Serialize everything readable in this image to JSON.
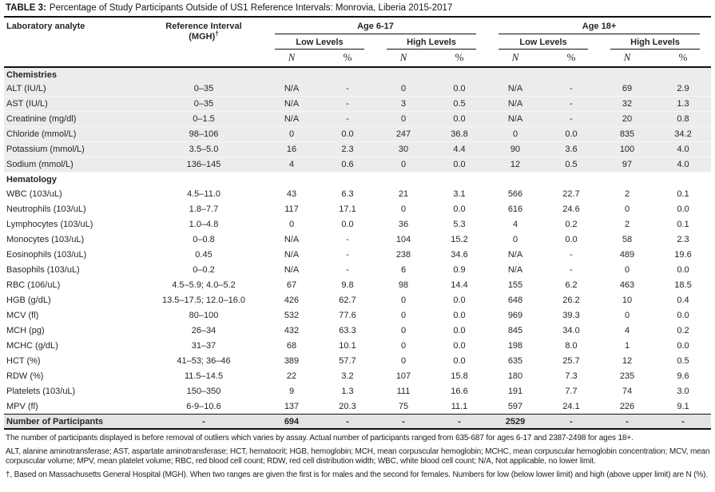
{
  "title": {
    "label": "TABLE 3:",
    "text": "Percentage of Study Participants Outside of US1 Reference Intervals: Monrovia, Liberia 2015-2017"
  },
  "table": {
    "col_headers": {
      "analyte": "Laboratory analyte",
      "reference_line1": "Reference Interval",
      "reference_line2": "(MGH)",
      "reference_dagger": "†",
      "age_groups": [
        "Age 6-17",
        "Age 18+"
      ],
      "level_groups": [
        "Low Levels",
        "High Levels",
        "Low Levels",
        "High Levels"
      ],
      "n_label": "N",
      "pct_label": "%"
    },
    "sections": [
      {
        "name": "Chemistries",
        "shaded": true,
        "rows": [
          {
            "analyte": "ALT (IU/L)",
            "ref": "0–35",
            "values": [
              "N/A",
              "-",
              "0",
              "0.0",
              "N/A",
              "-",
              "69",
              "2.9"
            ]
          },
          {
            "analyte": "AST (IU/L)",
            "ref": "0–35",
            "values": [
              "N/A",
              "-",
              "3",
              "0.5",
              "N/A",
              "-",
              "32",
              "1.3"
            ]
          },
          {
            "analyte": "Creatinine (mg/dl)",
            "ref": "0–1.5",
            "values": [
              "N/A",
              "-",
              "0",
              "0.0",
              "N/A",
              "-",
              "20",
              "0.8"
            ]
          },
          {
            "analyte": "Chloride (mmol/L)",
            "ref": "98–106",
            "values": [
              "0",
              "0.0",
              "247",
              "36.8",
              "0",
              "0.0",
              "835",
              "34.2"
            ]
          },
          {
            "analyte": "Potassium (mmol/L)",
            "ref": "3.5–5.0",
            "values": [
              "16",
              "2.3",
              "30",
              "4.4",
              "90",
              "3.6",
              "100",
              "4.0"
            ]
          },
          {
            "analyte": "Sodium (mmol/L)",
            "ref": "136–145",
            "values": [
              "4",
              "0.6",
              "0",
              "0.0",
              "12",
              "0.5",
              "97",
              "4.0"
            ]
          }
        ]
      },
      {
        "name": "Hematology",
        "shaded": false,
        "rows": [
          {
            "analyte": "WBC (103/uL)",
            "ref": "4.5–11.0",
            "values": [
              "43",
              "6.3",
              "21",
              "3.1",
              "566",
              "22.7",
              "2",
              "0.1"
            ]
          },
          {
            "analyte": "Neutrophils (103/uL)",
            "ref": "1.8–7.7",
            "values": [
              "117",
              "17.1",
              "0",
              "0.0",
              "616",
              "24.6",
              "0",
              "0.0"
            ]
          },
          {
            "analyte": "Lymphocytes (103/uL)",
            "ref": "1.0–4.8",
            "values": [
              "0",
              "0.0",
              "36",
              "5.3",
              "4",
              "0.2",
              "2",
              "0.1"
            ]
          },
          {
            "analyte": "Monocytes (103/uL)",
            "ref": "0–0.8",
            "values": [
              "N/A",
              "-",
              "104",
              "15.2",
              "0",
              "0.0",
              "58",
              "2.3"
            ]
          },
          {
            "analyte": "Eosinophils (103/uL)",
            "ref": "0.45",
            "values": [
              "N/A",
              "-",
              "238",
              "34.6",
              "N/A",
              "-",
              "489",
              "19.6"
            ]
          },
          {
            "analyte": "Basophils (103/uL)",
            "ref": "0–0.2",
            "values": [
              "N/A",
              "-",
              "6",
              "0.9",
              "N/A",
              "-",
              "0",
              "0.0"
            ]
          },
          {
            "analyte": "RBC (106/uL)",
            "ref": "4.5–5.9; 4.0–5.2",
            "values": [
              "67",
              "9.8",
              "98",
              "14.4",
              "155",
              "6.2",
              "463",
              "18.5"
            ]
          },
          {
            "analyte": "HGB (g/dL)",
            "ref": "13.5–17.5; 12.0–16.0",
            "values": [
              "426",
              "62.7",
              "0",
              "0.0",
              "648",
              "26.2",
              "10",
              "0.4"
            ]
          },
          {
            "analyte": "MCV (fl)",
            "ref": "80–100",
            "values": [
              "532",
              "77.6",
              "0",
              "0.0",
              "969",
              "39.3",
              "0",
              "0.0"
            ]
          },
          {
            "analyte": "MCH (pg)",
            "ref": "26–34",
            "values": [
              "432",
              "63.3",
              "0",
              "0.0",
              "845",
              "34.0",
              "4",
              "0.2"
            ]
          },
          {
            "analyte": "MCHC (g/dL)",
            "ref": "31–37",
            "values": [
              "68",
              "10.1",
              "0",
              "0.0",
              "198",
              "8.0",
              "1",
              "0.0"
            ]
          },
          {
            "analyte": "HCT (%)",
            "ref": "41–53; 36–46",
            "values": [
              "389",
              "57.7",
              "0",
              "0.0",
              "635",
              "25.7",
              "12",
              "0.5"
            ]
          },
          {
            "analyte": "RDW (%)",
            "ref": "11.5–14.5",
            "values": [
              "22",
              "3.2",
              "107",
              "15.8",
              "180",
              "7.3",
              "235",
              "9.6"
            ]
          },
          {
            "analyte": "Platelets (103/uL)",
            "ref": "150–350",
            "values": [
              "9",
              "1.3",
              "111",
              "16.6",
              "191",
              "7.7",
              "74",
              "3.0"
            ]
          },
          {
            "analyte": "MPV (fl)",
            "ref": "6-9–10.6",
            "values": [
              "137",
              "20.3",
              "75",
              "11.1",
              "597",
              "24.1",
              "226",
              "9.1"
            ]
          }
        ]
      }
    ],
    "footer_row": {
      "label": "Number of Participants",
      "ref": "-",
      "values": [
        "694",
        "-",
        "-",
        "-",
        "2529",
        "-",
        "-",
        "-"
      ]
    }
  },
  "footnotes": [
    "The number of participants displayed is before removal of outliers which varies by assay. Actual number of participants ranged from 635-687 for ages 6-17 and 2387-2498 for ages 18+.",
    "ALT, alanine aminotransferase; AST, aspartate aminotransferase; HCT, hematocrit; HGB, hemoglobin; MCH, mean corpuscular hemoglobin; MCHC, mean corpuscular hemoglobin concentration; MCV, mean corpuscular volume; MPV, mean platelet volume; RBC, red blood cell count; RDW, red cell distribution width; WBC, white blood cell count; N/A, Not applicable, no lower limit.",
    "†, Based on Massachusetts General Hospital (MGH). When two ranges are given the first is for males and the second for females. Numbers for low (below lower limit) and high (above upper limit) are N (%)."
  ],
  "colors": {
    "text": "#262626",
    "section_shade": "#ececec",
    "footer_shade": "#e3e3e3",
    "rule": "#111111"
  }
}
